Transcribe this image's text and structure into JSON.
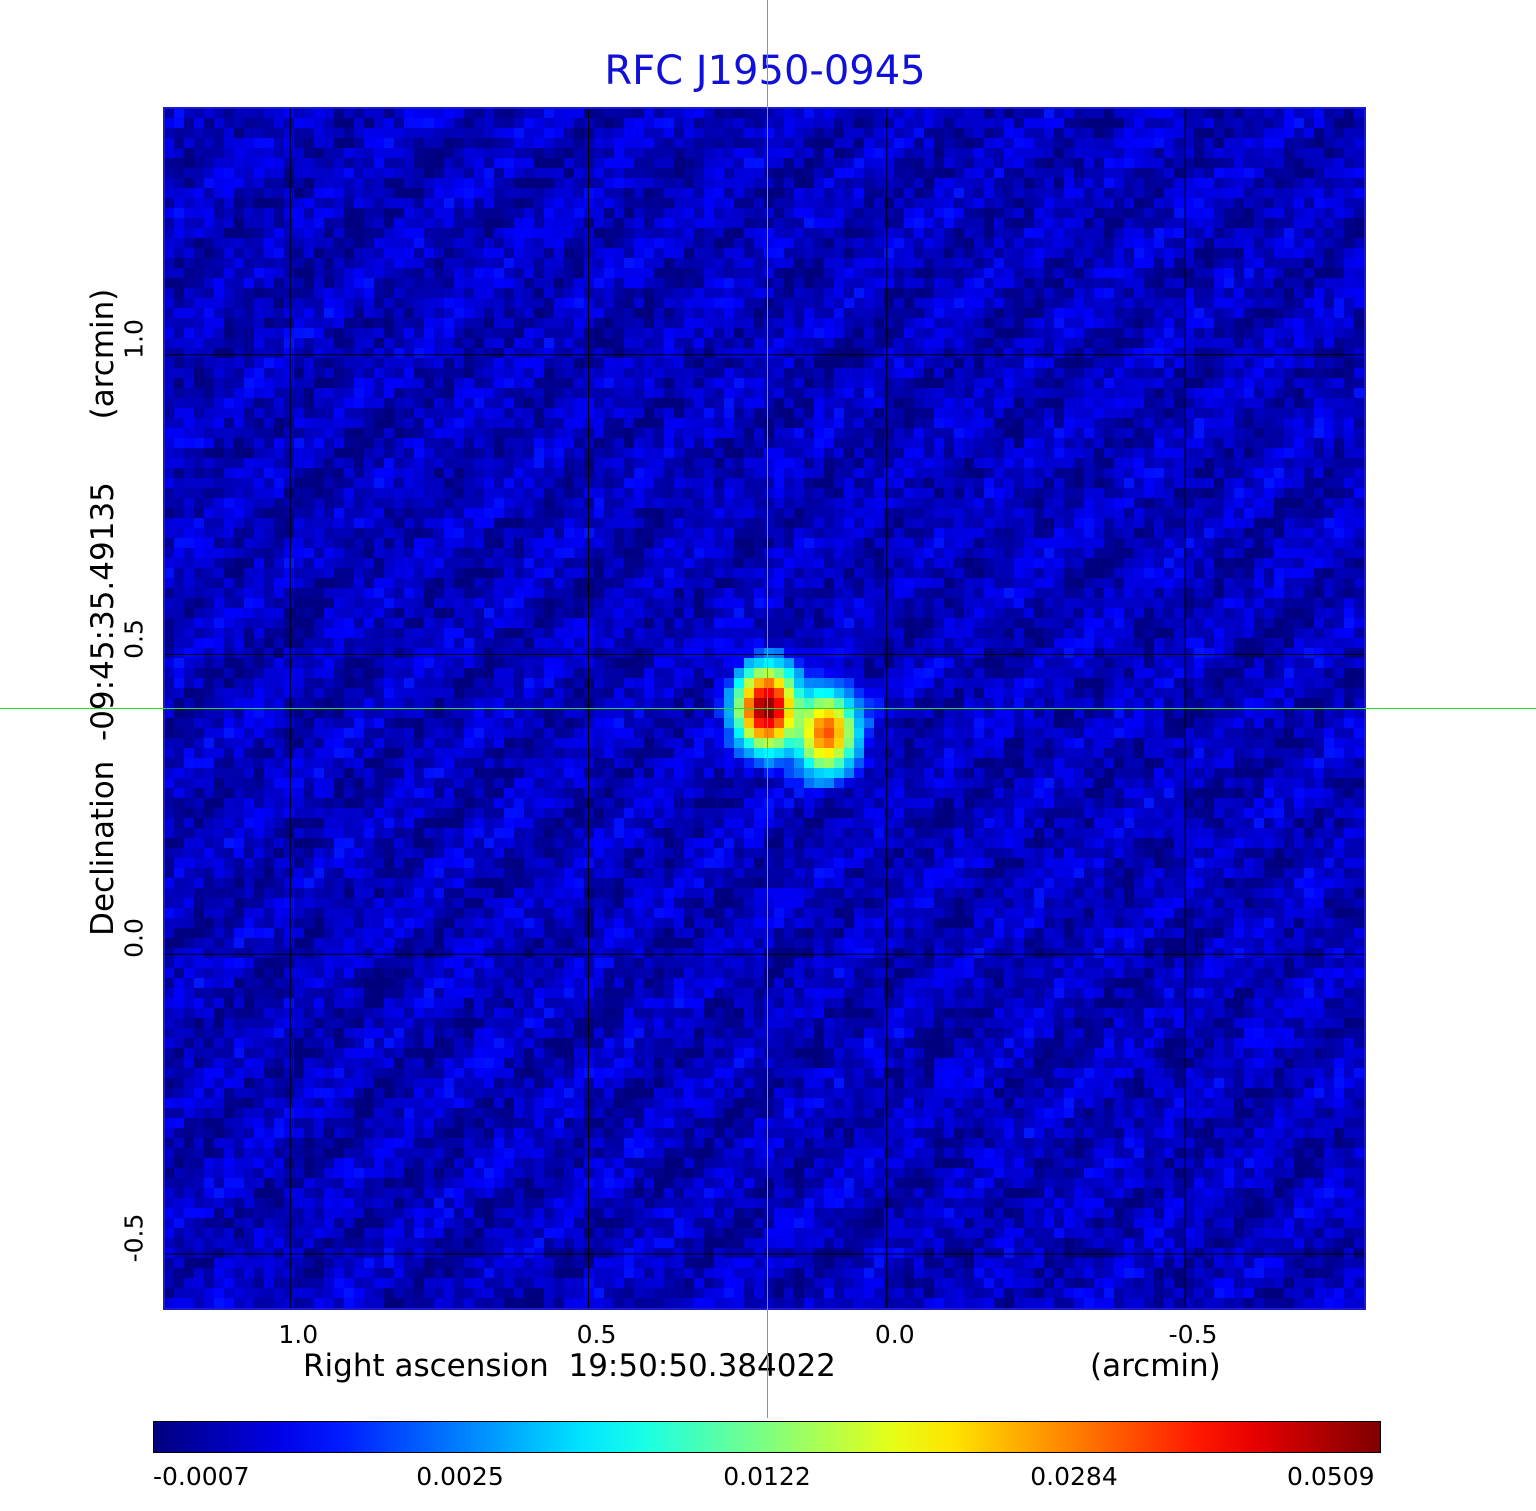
{
  "chart_data": {
    "type": "heatmap",
    "title": "RFC J1950-0945",
    "xlabel": "Right ascension  19:50:50.384022",
    "xunit": "(arcmin)",
    "ylabel": "Declination  -09:45:35.49135",
    "yunit": "(arcmin)",
    "xlim": [
      1.21,
      -0.8
    ],
    "ylim": [
      -0.59,
      1.41
    ],
    "x_ticks": [
      1.0,
      0.5,
      0.0,
      -0.5
    ],
    "x_tick_labels": [
      "1.0",
      "0.5",
      "0.0",
      "-0.5"
    ],
    "y_ticks": [
      1.0,
      0.5,
      0.0,
      -0.5
    ],
    "y_tick_labels": [
      "1.0",
      "0.5",
      "0.0",
      "-0.5"
    ],
    "grid": true,
    "colormap": "jet",
    "colorbar": {
      "ticks": [
        "-0.0007",
        "0.0025",
        "0.0122",
        "0.0284",
        "0.0509"
      ],
      "values": [
        -0.0007,
        0.0025,
        0.0122,
        0.0284,
        0.0509
      ]
    },
    "sources": [
      {
        "x": 0.2,
        "y": 0.41,
        "peak": 0.0509
      },
      {
        "x": 0.1,
        "y": 0.37,
        "peak": 0.032
      }
    ],
    "cursor": {
      "x": 0.2,
      "y": 0.41
    }
  }
}
